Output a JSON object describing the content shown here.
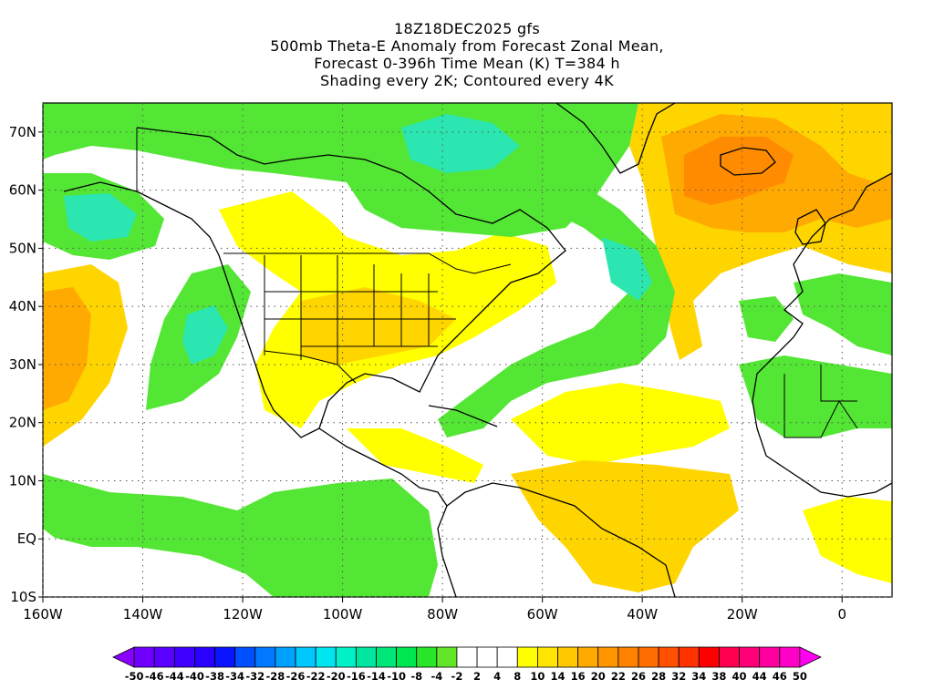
{
  "title": {
    "line1": "18Z18DEC2025 gfs",
    "line2": "500mb Theta-E Anomaly from Forecast Zonal Mean,",
    "line3": "Forecast 0-396h Time Mean (K) T=384 h",
    "line4": "Shading every 2K; Contoured every 4K"
  },
  "map": {
    "lon_range": [
      -160,
      10
    ],
    "lat_range": [
      -10,
      75
    ],
    "lat_labels": [
      "70N",
      "60N",
      "50N",
      "40N",
      "30N",
      "20N",
      "10N",
      "EQ",
      "10S"
    ],
    "lon_labels": [
      "160W",
      "140W",
      "120W",
      "100W",
      "80W",
      "60W",
      "40W",
      "20W",
      "0"
    ],
    "gridlines": "dotted"
  },
  "colorbar": {
    "labels": [
      "-50",
      "-46",
      "-44",
      "-40",
      "-38",
      "-34",
      "-32",
      "-28",
      "-26",
      "-22",
      "-20",
      "-16",
      "-14",
      "-10",
      "-8",
      "-4",
      "-2",
      "2",
      "4",
      "8",
      "10",
      "14",
      "16",
      "20",
      "22",
      "26",
      "28",
      "32",
      "34",
      "38",
      "40",
      "44",
      "46",
      "50"
    ],
    "colors": [
      "#8a00ff",
      "#6f00ff",
      "#5a00ff",
      "#3f00ff",
      "#2a00ff",
      "#0a14ff",
      "#0050ff",
      "#0078ff",
      "#00a0ff",
      "#00c8ff",
      "#00e6f0",
      "#00f0c8",
      "#00e6a0",
      "#00e678",
      "#00e650",
      "#28e628",
      "#64e628",
      "#ffffff",
      "#ffffff",
      "#ffffff",
      "#ffff00",
      "#ffe600",
      "#ffc800",
      "#ffaa00",
      "#ff9600",
      "#ff8200",
      "#ff6e00",
      "#ff5000",
      "#ff3200",
      "#ff0000",
      "#ff0050",
      "#ff0078",
      "#ff00a0",
      "#ff00c8",
      "#ff00f0"
    ]
  },
  "colors": {
    "green_main": "#54e634",
    "green_light": "#7fea3c",
    "cyan_core": "#2be6b0",
    "yellow": "#ffff00",
    "gold": "#ffd500",
    "orange": "#ffb000",
    "dark_orange": "#ff8c00"
  }
}
